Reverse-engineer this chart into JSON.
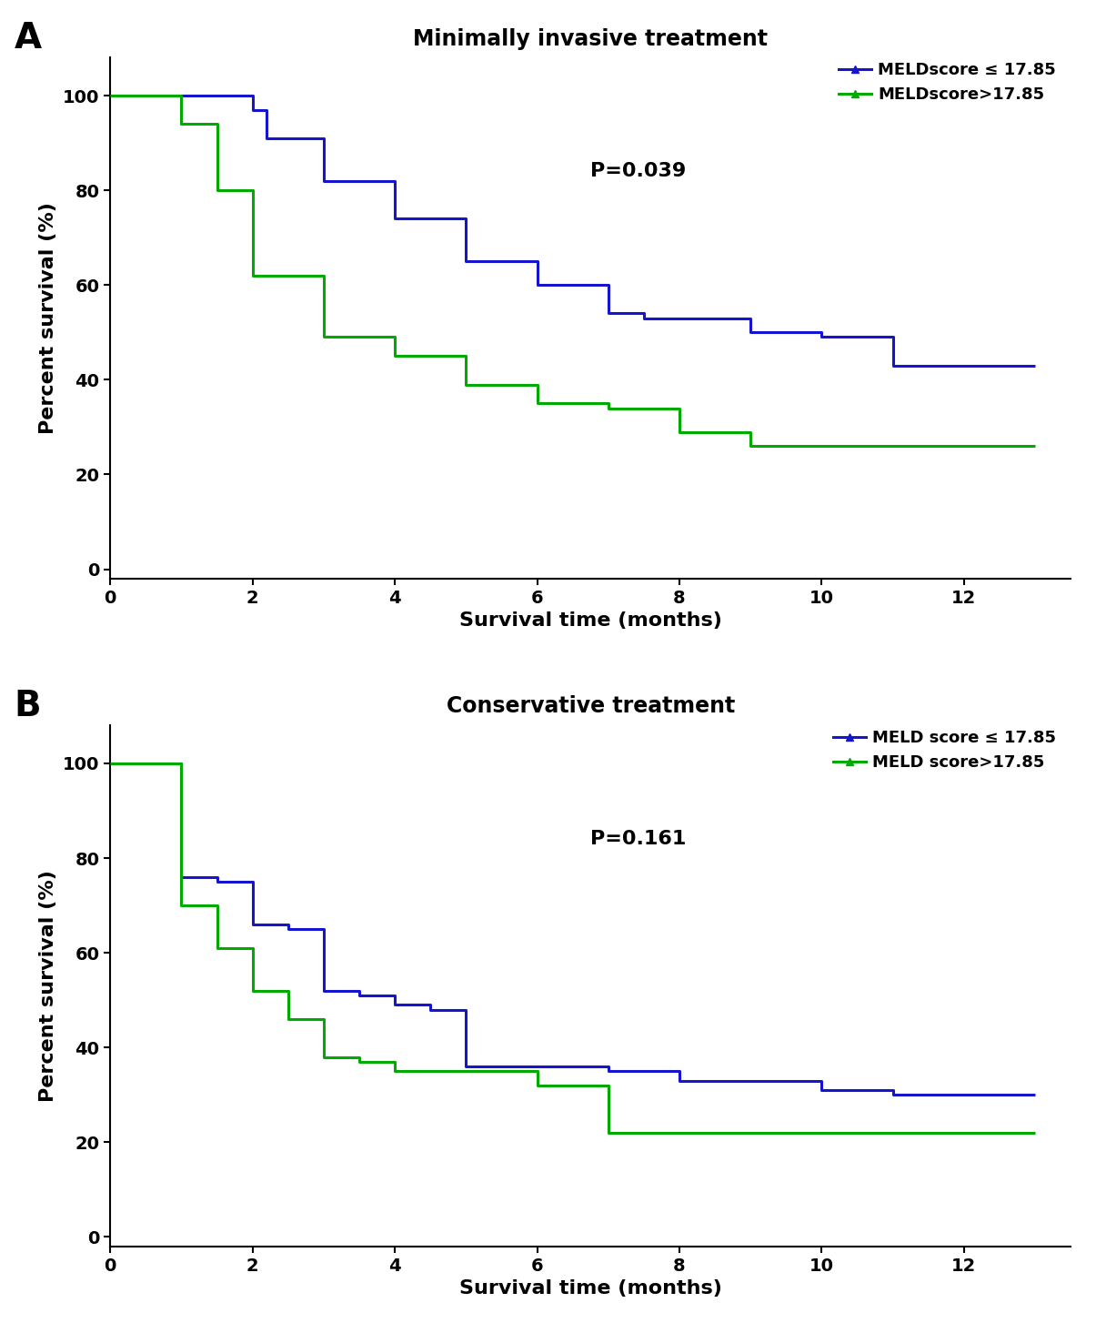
{
  "panel_A": {
    "title": "Minimally invasive treatment",
    "panel_label": "A",
    "p_value": "P=0.039",
    "blue_label": "MELDscore ≤ 17.85",
    "green_label": "MELDscore>17.85",
    "blue_steps": [
      [
        0,
        100
      ],
      [
        2,
        100
      ],
      [
        2,
        97
      ],
      [
        2.2,
        97
      ],
      [
        2.2,
        91
      ],
      [
        3,
        91
      ],
      [
        3,
        82
      ],
      [
        4,
        82
      ],
      [
        4,
        74
      ],
      [
        5,
        74
      ],
      [
        5,
        65
      ],
      [
        6,
        65
      ],
      [
        6,
        60
      ],
      [
        7,
        60
      ],
      [
        7,
        54
      ],
      [
        7.5,
        54
      ],
      [
        7.5,
        53
      ],
      [
        9,
        53
      ],
      [
        9,
        50
      ],
      [
        10,
        50
      ],
      [
        10,
        49
      ],
      [
        11,
        49
      ],
      [
        11,
        43
      ],
      [
        12,
        43
      ],
      [
        12,
        43
      ],
      [
        13,
        43
      ]
    ],
    "green_steps": [
      [
        0,
        100
      ],
      [
        1,
        100
      ],
      [
        1,
        94
      ],
      [
        1.5,
        94
      ],
      [
        1.5,
        80
      ],
      [
        2,
        80
      ],
      [
        2,
        62
      ],
      [
        3,
        62
      ],
      [
        3,
        49
      ],
      [
        4,
        49
      ],
      [
        4,
        45
      ],
      [
        5,
        45
      ],
      [
        5,
        39
      ],
      [
        6,
        39
      ],
      [
        6,
        35
      ],
      [
        7,
        35
      ],
      [
        7,
        34
      ],
      [
        8,
        34
      ],
      [
        8,
        29
      ],
      [
        9,
        29
      ],
      [
        9,
        26
      ],
      [
        10,
        26
      ],
      [
        10,
        26
      ],
      [
        13,
        26
      ]
    ]
  },
  "panel_B": {
    "title": "Conservative treatment",
    "panel_label": "B",
    "p_value": "P=0.161",
    "blue_label": "MELD score ≤ 17.85",
    "green_label": "MELD score>17.85",
    "blue_steps": [
      [
        0,
        100
      ],
      [
        1,
        100
      ],
      [
        1,
        76
      ],
      [
        1.5,
        76
      ],
      [
        1.5,
        75
      ],
      [
        2,
        75
      ],
      [
        2,
        66
      ],
      [
        2.5,
        66
      ],
      [
        2.5,
        65
      ],
      [
        3,
        65
      ],
      [
        3,
        52
      ],
      [
        3.5,
        52
      ],
      [
        3.5,
        51
      ],
      [
        4,
        51
      ],
      [
        4,
        49
      ],
      [
        4.5,
        49
      ],
      [
        4.5,
        48
      ],
      [
        5,
        48
      ],
      [
        5,
        36
      ],
      [
        6,
        36
      ],
      [
        6,
        36
      ],
      [
        7,
        36
      ],
      [
        7,
        35
      ],
      [
        8,
        35
      ],
      [
        8,
        33
      ],
      [
        9,
        33
      ],
      [
        9,
        33
      ],
      [
        10,
        33
      ],
      [
        10,
        31
      ],
      [
        11,
        31
      ],
      [
        11,
        30
      ],
      [
        13,
        30
      ]
    ],
    "green_steps": [
      [
        0,
        100
      ],
      [
        1,
        100
      ],
      [
        1,
        70
      ],
      [
        1.5,
        70
      ],
      [
        1.5,
        61
      ],
      [
        2,
        61
      ],
      [
        2,
        52
      ],
      [
        2.5,
        52
      ],
      [
        2.5,
        46
      ],
      [
        3,
        46
      ],
      [
        3,
        38
      ],
      [
        3.5,
        38
      ],
      [
        3.5,
        37
      ],
      [
        4,
        37
      ],
      [
        4,
        35
      ],
      [
        5,
        35
      ],
      [
        5,
        35
      ],
      [
        6,
        35
      ],
      [
        6,
        32
      ],
      [
        7,
        32
      ],
      [
        7,
        22
      ],
      [
        8,
        22
      ],
      [
        8,
        22
      ],
      [
        13,
        22
      ]
    ]
  },
  "blue_color": "#1515d0",
  "green_color": "#00aa00",
  "line_width": 2.2,
  "marker_color_blue": "#1515d0",
  "marker_color_green": "#00aa00",
  "xlabel": "Survival time (months)",
  "ylabel": "Percent survival (%)",
  "xlim": [
    0,
    13.5
  ],
  "ylim": [
    -2,
    108
  ],
  "yticks": [
    0,
    20,
    40,
    60,
    80,
    100
  ],
  "xticks": [
    0,
    2,
    4,
    6,
    8,
    10,
    12
  ],
  "tick_fontsize": 14,
  "label_fontsize": 16,
  "title_fontsize": 17,
  "panel_label_fontsize": 28,
  "legend_fontsize": 13,
  "pvalue_fontsize": 16
}
